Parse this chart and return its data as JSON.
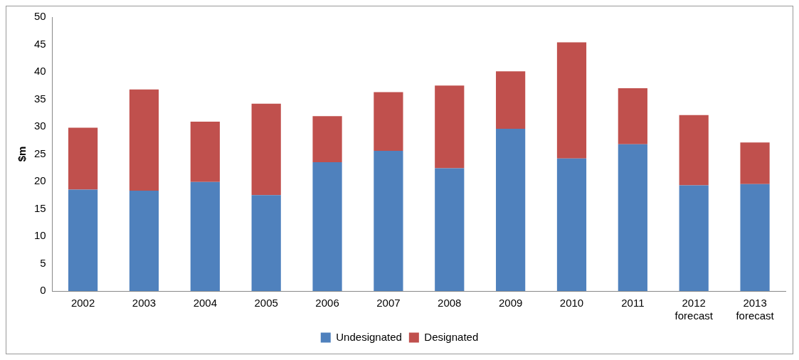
{
  "chart_data": {
    "type": "bar",
    "stacked": true,
    "ylabel": "$m",
    "categories": [
      "2002",
      "2003",
      "2004",
      "2005",
      "2006",
      "2007",
      "2008",
      "2009",
      "2010",
      "2011",
      "2012\nforecast",
      "2013\nforecast"
    ],
    "series": [
      {
        "name": "Undesignated",
        "color": "#4f81bd",
        "values": [
          18.5,
          18.3,
          19.9,
          17.5,
          23.5,
          25.6,
          22.4,
          29.6,
          24.2,
          26.8,
          19.3,
          19.5
        ]
      },
      {
        "name": "Designated",
        "color": "#c0504d",
        "values": [
          11.3,
          18.5,
          11,
          16.7,
          8.4,
          10.7,
          15.1,
          10.5,
          21.2,
          10.2,
          12.8,
          7.6
        ]
      }
    ],
    "ylim": [
      0,
      50
    ],
    "yticks": [
      0,
      5,
      10,
      15,
      20,
      25,
      30,
      35,
      40,
      45,
      50
    ],
    "grid": false,
    "legend": "bottom"
  }
}
